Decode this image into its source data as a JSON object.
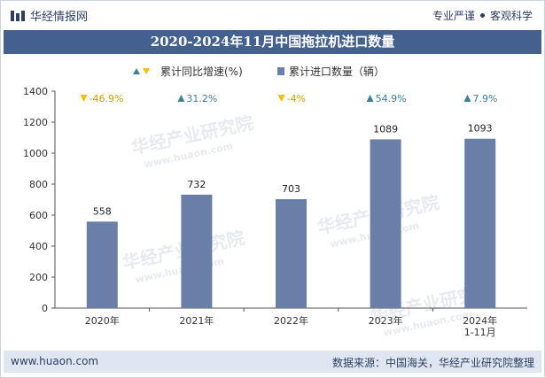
{
  "header": {
    "brand": "华经情报网",
    "slogan_left": "专业严谨",
    "slogan_right": "客观科学",
    "logo_icon": "huajing-logo-icon"
  },
  "chart_data": {
    "type": "bar",
    "title": "2020-2024年11月中国拖拉机进口数量",
    "categories": [
      "2020年",
      "2021年",
      "2022年",
      "2023年",
      "2024年\n1-11月"
    ],
    "series": [
      {
        "name": "累计进口数量（辆）",
        "values": [
          558,
          732,
          703,
          1089,
          1093
        ],
        "color": "#6a7fa8"
      },
      {
        "name": "累计同比增速(%)",
        "values": [
          -46.9,
          31.2,
          -4,
          54.9,
          7.9
        ],
        "labels": [
          "-46.9%",
          "31.2%",
          "-4%",
          "54.9%",
          "7.9%"
        ]
      }
    ],
    "growth_colors": {
      "up": "#3f7e9c",
      "down": "#f0c000"
    },
    "ylim": [
      0,
      1400
    ],
    "yticks": [
      0,
      200,
      400,
      600,
      800,
      1000,
      1200,
      1400
    ],
    "xlabel": "",
    "ylabel": "",
    "legend": [
      "累计同比增速(%)",
      "累计进口数量（辆）"
    ],
    "legend_position": "top-center"
  },
  "watermark": {
    "text_cn": "华经产业研究院",
    "text_en": "www.huaon.com"
  },
  "footer": {
    "website": "www.huaon.com",
    "source": "数据来源：中国海关，华经产业研究院整理"
  }
}
